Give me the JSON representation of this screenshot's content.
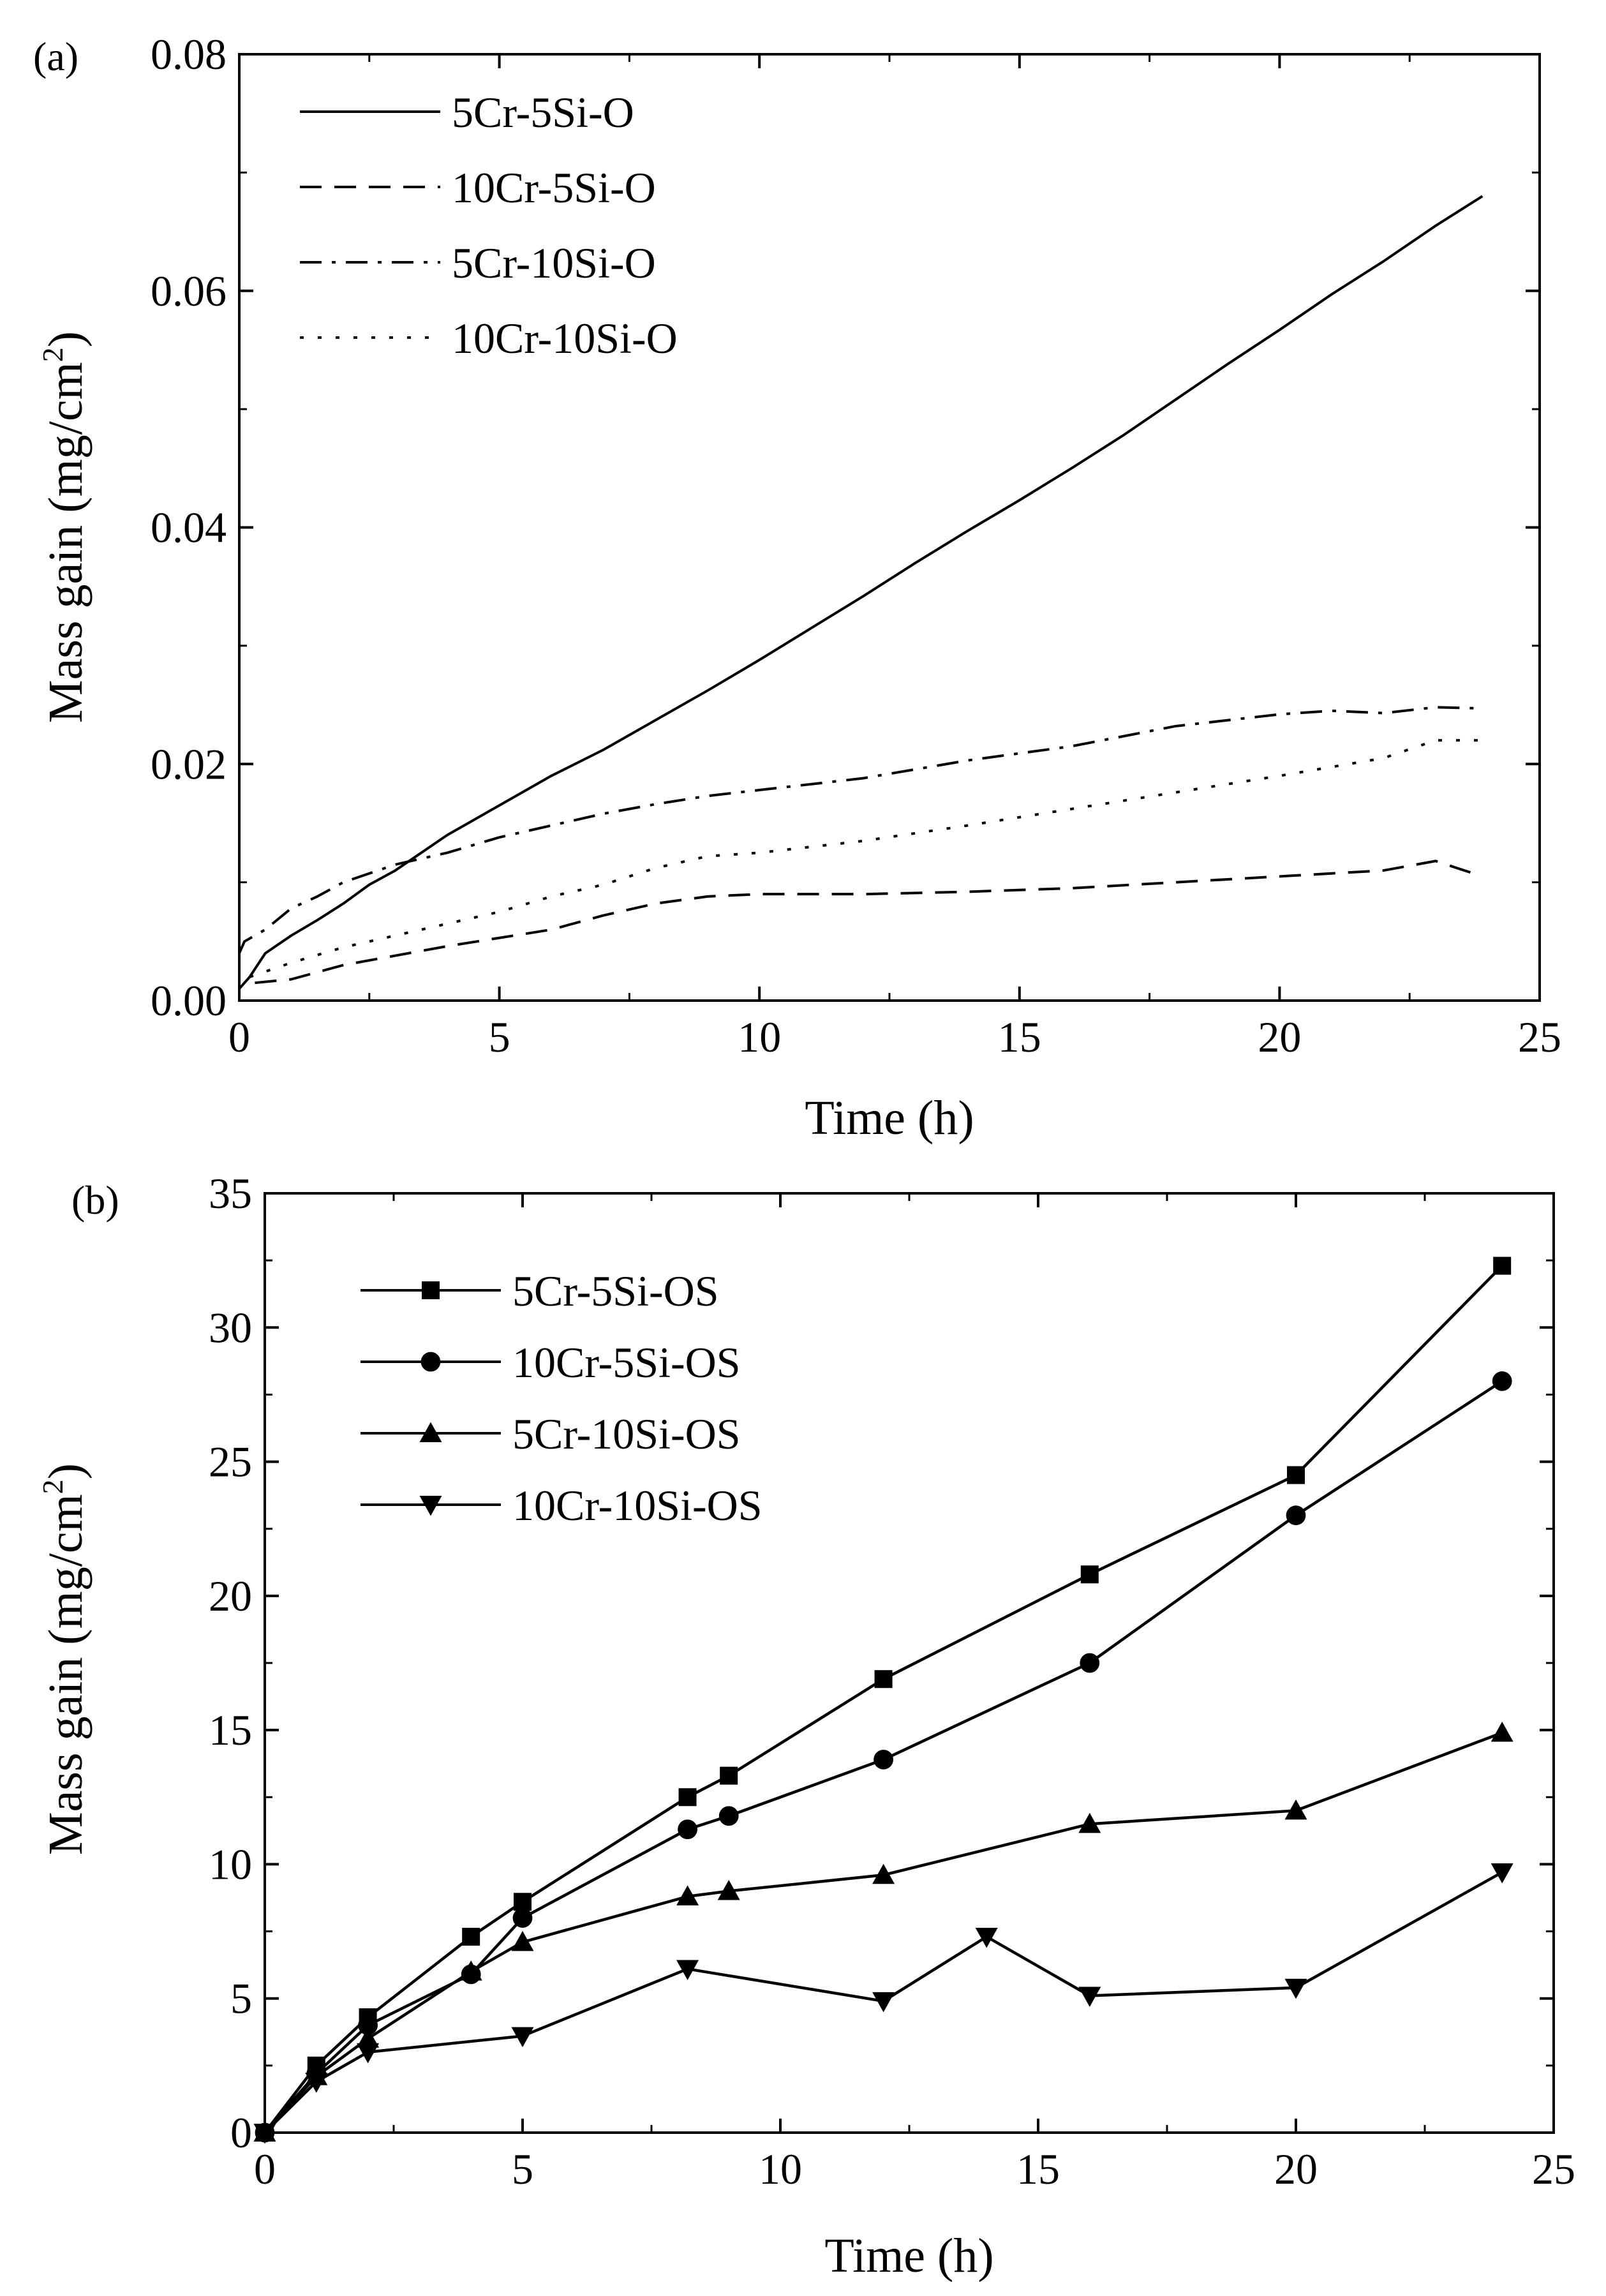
{
  "chart_data": [
    {
      "panel": "(a)",
      "type": "line",
      "xlabel": "Time (h)",
      "ylabel": "Mass gain (mg/cm",
      "ylabel_sup": "2",
      "ylabel_end": ")",
      "xlim": [
        0,
        25
      ],
      "ylim": [
        0,
        0.08
      ],
      "xticks": [
        0,
        5,
        10,
        15,
        20,
        25
      ],
      "xtick_labels": [
        "0",
        "5",
        "10",
        "15",
        "20",
        "25"
      ],
      "yticks": [
        0,
        0.02,
        0.04,
        0.06,
        0.08
      ],
      "ytick_labels": [
        "0.00",
        "0.02",
        "0.04",
        "0.06",
        "0.08"
      ],
      "legend_position": "top-left",
      "series": [
        {
          "name": "5Cr-5Si-O",
          "style": "solid",
          "x": [
            0,
            0.2,
            0.5,
            1,
            1.5,
            2,
            2.5,
            3,
            4,
            5,
            6,
            7,
            8,
            9,
            10,
            11,
            12,
            13,
            14,
            15,
            16,
            17,
            18,
            19,
            20,
            21,
            22,
            23,
            23.9
          ],
          "y": [
            0.001,
            0.002,
            0.004,
            0.0055,
            0.0068,
            0.0082,
            0.0098,
            0.011,
            0.014,
            0.0165,
            0.019,
            0.0212,
            0.0237,
            0.0262,
            0.0288,
            0.0315,
            0.0342,
            0.037,
            0.0397,
            0.0423,
            0.045,
            0.0478,
            0.0508,
            0.0538,
            0.0567,
            0.0597,
            0.0625,
            0.0655,
            0.068
          ]
        },
        {
          "name": "10Cr-5Si-O",
          "style": "dashed",
          "x": [
            0.3,
            1,
            2,
            3,
            4,
            5,
            6,
            7,
            8,
            9,
            10,
            12,
            14,
            16,
            18,
            20,
            22,
            23,
            23.9
          ],
          "y": [
            0.0015,
            0.0018,
            0.003,
            0.0038,
            0.0046,
            0.0053,
            0.006,
            0.0072,
            0.0082,
            0.0088,
            0.009,
            0.009,
            0.0092,
            0.0095,
            0.01,
            0.0105,
            0.011,
            0.0118,
            0.0105
          ]
        },
        {
          "name": "5Cr-10Si-O",
          "style": "dashdot",
          "x": [
            0,
            0.1,
            0.5,
            1,
            1.5,
            2,
            3,
            4,
            5,
            6,
            7,
            8,
            9,
            10,
            12,
            14,
            16,
            18,
            20,
            21,
            22,
            23,
            23.9
          ],
          "y": [
            0.004,
            0.005,
            0.006,
            0.0078,
            0.0088,
            0.01,
            0.0115,
            0.0125,
            0.0138,
            0.0148,
            0.0158,
            0.0166,
            0.0173,
            0.0178,
            0.0188,
            0.0203,
            0.0215,
            0.0232,
            0.0242,
            0.0245,
            0.0243,
            0.0248,
            0.0247
          ]
        },
        {
          "name": "10Cr-10Si-O",
          "style": "dotted",
          "x": [
            0.2,
            1,
            2,
            3,
            4,
            5,
            6,
            7,
            8,
            9,
            10,
            12,
            14,
            16,
            18,
            20,
            22,
            23,
            23.9
          ],
          "y": [
            0.002,
            0.0032,
            0.0045,
            0.0055,
            0.0065,
            0.0075,
            0.0088,
            0.0098,
            0.0112,
            0.0122,
            0.0125,
            0.0135,
            0.0148,
            0.0162,
            0.0176,
            0.019,
            0.0205,
            0.022,
            0.022
          ]
        }
      ]
    },
    {
      "panel": "(b)",
      "type": "line",
      "xlabel": "Time (h)",
      "ylabel": "Mass gain (mg/cm",
      "ylabel_sup": "2",
      "ylabel_end": ")",
      "xlim": [
        0,
        25
      ],
      "ylim": [
        0,
        35
      ],
      "xticks": [
        0,
        5,
        10,
        15,
        20,
        25
      ],
      "xtick_labels": [
        "0",
        "5",
        "10",
        "15",
        "20",
        "25"
      ],
      "yticks": [
        0,
        5,
        10,
        15,
        20,
        25,
        30,
        35
      ],
      "ytick_labels": [
        "0",
        "5",
        "10",
        "15",
        "20",
        "25",
        "30",
        "35"
      ],
      "legend_position": "top-left",
      "series": [
        {
          "name": "5Cr-5Si-OS",
          "marker": "square",
          "x": [
            0,
            1,
            2,
            4,
            5,
            8.2,
            9,
            12,
            16,
            20,
            24
          ],
          "y": [
            0,
            2.5,
            4.3,
            7.3,
            8.6,
            12.5,
            13.3,
            16.9,
            20.8,
            24.5,
            32.3
          ]
        },
        {
          "name": "10Cr-5Si-OS",
          "marker": "circle",
          "x": [
            0,
            1,
            2,
            4,
            5,
            8.2,
            9,
            12,
            16,
            20,
            24
          ],
          "y": [
            0,
            2.2,
            4,
            5.9,
            8,
            11.3,
            11.8,
            13.9,
            17.5,
            23,
            28
          ]
        },
        {
          "name": "5Cr-10Si-OS",
          "marker": "triangle-up",
          "x": [
            0,
            1,
            2,
            4,
            5,
            8.2,
            9,
            12,
            16,
            20,
            24
          ],
          "y": [
            0,
            2.1,
            3.5,
            6,
            7.1,
            8.8,
            9,
            9.6,
            11.5,
            12,
            14.9
          ]
        },
        {
          "name": "10Cr-10Si-OS",
          "marker": "triangle-down",
          "x": [
            0,
            1,
            2,
            5,
            8.2,
            12,
            14,
            16,
            20,
            24
          ],
          "y": [
            0,
            1.9,
            3,
            3.6,
            6.1,
            4.9,
            7.3,
            5.1,
            5.4,
            9.7
          ]
        }
      ]
    }
  ]
}
